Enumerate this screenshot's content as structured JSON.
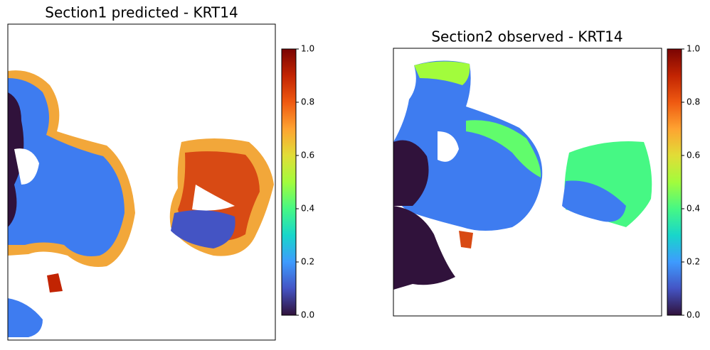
{
  "chart_data": [
    {
      "type": "image",
      "title": "Section1 predicted - KRT14",
      "colormap": "turbo",
      "colorbar": {
        "ylim": [
          0,
          1
        ],
        "yticks": [
          {
            "value": 0,
            "label": "0.0"
          },
          {
            "value": 0.2,
            "label": "0.2"
          },
          {
            "value": 0.4,
            "label": "0.4"
          },
          {
            "value": 0.6,
            "label": "0.6"
          },
          {
            "value": 0.8,
            "label": "0.8"
          },
          {
            "value": 1,
            "label": "1.0"
          }
        ]
      }
    },
    {
      "type": "image",
      "title": "Section2 observed - KRT14",
      "colormap": "turbo",
      "colorbar": {
        "ylim": [
          0,
          1
        ],
        "yticks": [
          {
            "value": 0,
            "label": "0.0"
          },
          {
            "value": 0.2,
            "label": "0.2"
          },
          {
            "value": 0.4,
            "label": "0.4"
          },
          {
            "value": 0.6,
            "label": "0.6"
          },
          {
            "value": 0.8,
            "label": "0.8"
          },
          {
            "value": 1,
            "label": "1.0"
          }
        ]
      }
    }
  ]
}
